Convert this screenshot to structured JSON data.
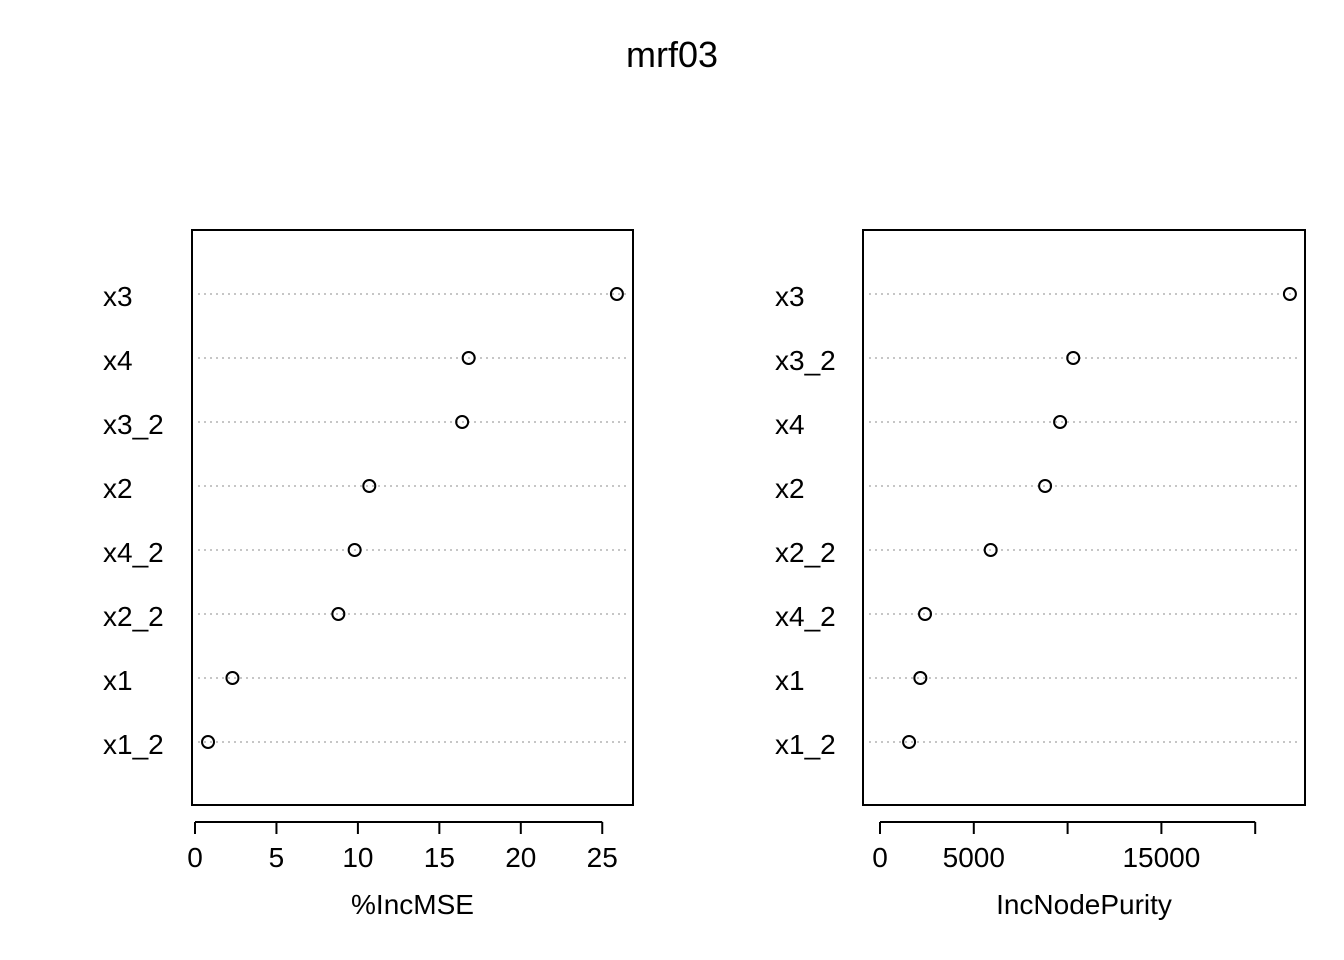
{
  "title": "mrf03",
  "chart_data": [
    {
      "type": "scatter",
      "subtype": "dotchart",
      "xlabel": "%IncMSE",
      "labels": [
        "x3",
        "x4",
        "x3_2",
        "x2",
        "x4_2",
        "x2_2",
        "x1",
        "x1_2"
      ],
      "values": [
        25.9,
        16.8,
        16.4,
        10.7,
        9.8,
        8.8,
        2.3,
        0.8
      ],
      "xlim": [
        0,
        26
      ],
      "xticks": [
        0,
        5,
        10,
        15,
        20,
        25
      ],
      "xtick_labels": [
        "0",
        "5",
        "10",
        "15",
        "20",
        "25"
      ],
      "gridlines": "dotted"
    },
    {
      "type": "scatter",
      "subtype": "dotchart",
      "xlabel": "IncNodePurity",
      "labels": [
        "x3",
        "x3_2",
        "x4",
        "x2",
        "x2_2",
        "x4_2",
        "x1",
        "x1_2"
      ],
      "values": [
        21850,
        10300,
        9600,
        8800,
        5900,
        2400,
        2150,
        1550
      ],
      "xlim": [
        0,
        22000
      ],
      "xticks": [
        0,
        5000,
        10000,
        15000,
        20000
      ],
      "xtick_labels": [
        "0",
        "5000",
        "",
        "15000",
        ""
      ],
      "gridlines": "dotted"
    }
  ]
}
